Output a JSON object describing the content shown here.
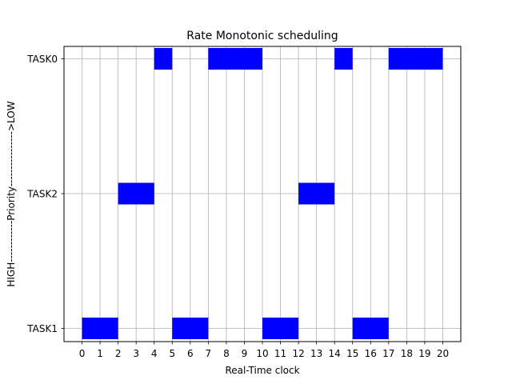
{
  "chart_data": {
    "type": "bar",
    "subtype": "gantt",
    "title": "Rate Monotonic scheduling",
    "xlabel": "Real-Time clock",
    "ylabel": "HIGH------------Priority---------------->LOW",
    "xlim": [
      -1,
      21
    ],
    "xticks": [
      0,
      1,
      2,
      3,
      4,
      5,
      6,
      7,
      8,
      9,
      10,
      11,
      12,
      13,
      14,
      15,
      16,
      17,
      18,
      19,
      20
    ],
    "yticks": [
      "TASK1",
      "TASK2",
      "TASK0"
    ],
    "grid": true,
    "bar_color": "#0000ff",
    "grid_color": "#b0b0b0",
    "series": [
      {
        "name": "TASK1",
        "intervals": [
          [
            0,
            2
          ],
          [
            5,
            7
          ],
          [
            10,
            12
          ],
          [
            15,
            17
          ]
        ]
      },
      {
        "name": "TASK2",
        "intervals": [
          [
            2,
            4
          ],
          [
            12,
            14
          ]
        ]
      },
      {
        "name": "TASK0",
        "intervals": [
          [
            4,
            5
          ],
          [
            7,
            10
          ],
          [
            14,
            15
          ],
          [
            17,
            20
          ]
        ]
      }
    ]
  }
}
